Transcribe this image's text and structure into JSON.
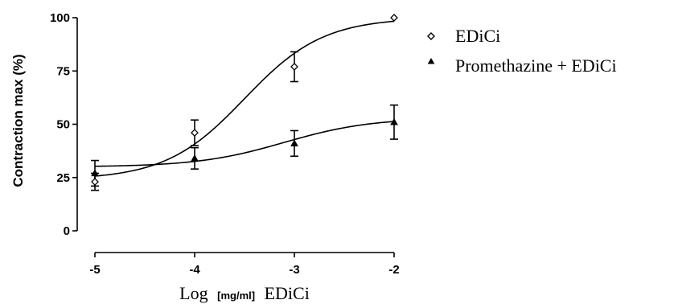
{
  "chart_data": {
    "type": "scatter",
    "title": "",
    "xlabel_parts": [
      "Log",
      "[mg/ml]",
      "EDiCi"
    ],
    "ylabel": "Contraction max (%)",
    "xlim": [
      -5,
      -2
    ],
    "ylim": [
      0,
      100
    ],
    "xticks": [
      -5,
      -4,
      -3,
      -2
    ],
    "yticks": [
      0,
      25,
      50,
      75,
      100
    ],
    "xtick_labels": [
      "-5",
      "-4",
      "-3",
      "-2"
    ],
    "ytick_labels": [
      "0",
      "25",
      "50",
      "75",
      "100"
    ],
    "grid": false,
    "legend_position": "right",
    "series": [
      {
        "name": "EDiCi",
        "marker": "open-diamond",
        "x": [
          -5,
          -4,
          -3,
          -2
        ],
        "y": [
          23,
          46,
          77,
          100
        ],
        "err": [
          4,
          6,
          7,
          0
        ],
        "fit": "sigmoid",
        "fit_params": {
          "bottom": 24,
          "top": 100,
          "logEC50": -3.5,
          "hill": 1.1
        }
      },
      {
        "name": "Promethazine + EDiCi",
        "marker": "filled-triangle",
        "x": [
          -5,
          -4,
          -3,
          -2
        ],
        "y": [
          27,
          34,
          41,
          51
        ],
        "err": [
          6,
          5,
          6,
          8
        ],
        "fit": "sigmoid",
        "fit_params": {
          "bottom": 30,
          "top": 53,
          "logEC50": -3.1,
          "hill": 1.0
        }
      }
    ]
  }
}
